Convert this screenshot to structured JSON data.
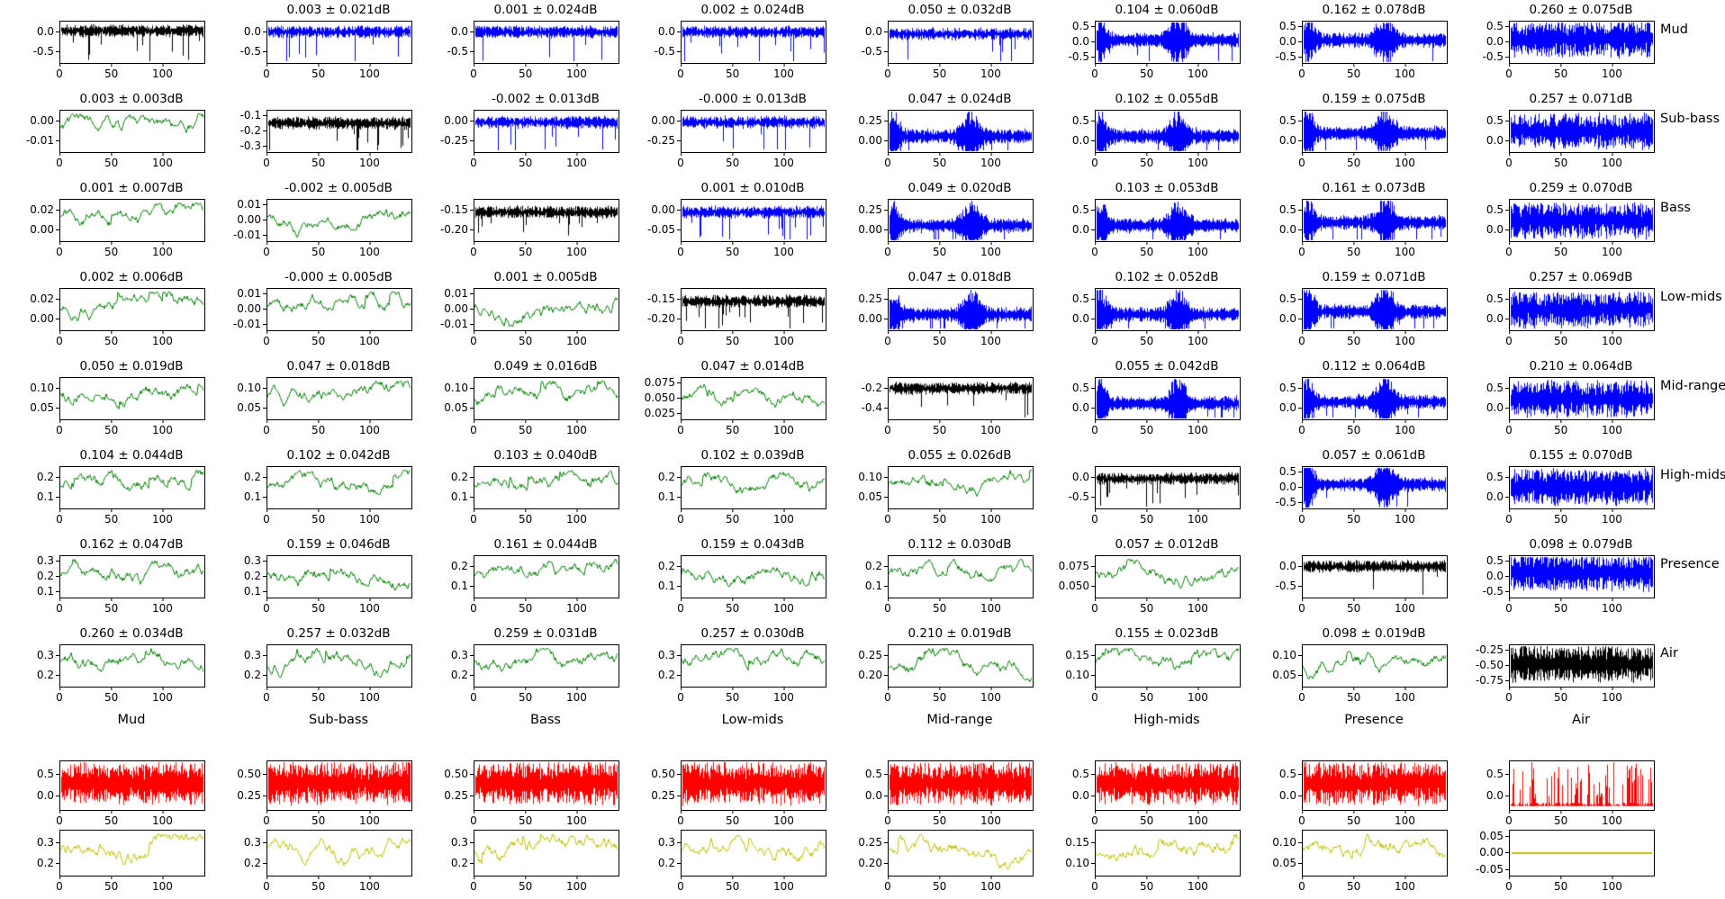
{
  "chart_data": {
    "type": "line",
    "description": "Grid of small time-series subplots: 8x8 matrix of frequency-band gain traces (mean ± std in dB titles), diagonal in black, upper triangle blue, lower triangle green, plus one red noise row and one yellow line row at bottom",
    "x_ticks": [
      "0",
      "50",
      "100"
    ],
    "x_range": [
      0,
      140
    ],
    "row_labels": [
      "Mud",
      "Sub-bass",
      "Bass",
      "Low-mids",
      "Mid-range",
      "High-mids",
      "Presence",
      "Air"
    ],
    "column_labels": [
      "Mud",
      "Sub-bass",
      "Bass",
      "Low-mids",
      "Mid-range",
      "High-mids",
      "Presence",
      "Air"
    ],
    "colors": {
      "k": "#000000",
      "b": "#0000ff",
      "g": "#008000",
      "r": "#ff0000",
      "y": "#bfbf00"
    },
    "matrix": [
      [
        {
          "t": null,
          "c": "k",
          "yt": [
            "0.0",
            "-0.5"
          ],
          "w": "spiky",
          "b": 0.22
        },
        {
          "t": "0.003 ± 0.021dB",
          "c": "b",
          "yt": [
            "0.0",
            "-0.5"
          ],
          "w": "spiky",
          "b": 0.25
        },
        {
          "t": "0.001 ± 0.024dB",
          "c": "b",
          "yt": [
            "0.0",
            "-0.5"
          ],
          "w": "spiky",
          "b": 0.25
        },
        {
          "t": "0.002 ± 0.024dB",
          "c": "b",
          "yt": [
            "0.0",
            "-0.5"
          ],
          "w": "spiky",
          "b": 0.25
        },
        {
          "t": "0.050 ± 0.032dB",
          "c": "b",
          "yt": [
            "0.0",
            "-0.5"
          ],
          "w": "spiky",
          "b": 0.3
        },
        {
          "t": "0.104 ± 0.060dB",
          "c": "b",
          "yt": [
            "0.5",
            "0.0",
            "-0.5"
          ],
          "w": "burst",
          "b": 0.45
        },
        {
          "t": "0.162 ± 0.078dB",
          "c": "b",
          "yt": [
            "0.5",
            "0.0",
            "-0.5"
          ],
          "w": "burst",
          "b": 0.45
        },
        {
          "t": "0.260 ± 0.075dB",
          "c": "b",
          "yt": [
            "0.5",
            "0.0",
            "-0.5"
          ],
          "w": "dense",
          "b": 0.42
        }
      ],
      [
        {
          "t": "0.003 ± 0.003dB",
          "c": "g",
          "yt": [
            "0.00",
            "-0.01"
          ],
          "w": "line"
        },
        {
          "t": null,
          "c": "k",
          "yt": [
            "-0.1",
            "-0.2",
            "-0.3"
          ],
          "w": "spiky",
          "b": 0.3
        },
        {
          "t": "-0.002 ± 0.013dB",
          "c": "b",
          "yt": [
            "0.00",
            "-0.25"
          ],
          "w": "spiky",
          "b": 0.28
        },
        {
          "t": "-0.000 ± 0.013dB",
          "c": "b",
          "yt": [
            "0.00",
            "-0.25"
          ],
          "w": "spiky",
          "b": 0.28
        },
        {
          "t": "0.047 ± 0.024dB",
          "c": "b",
          "yt": [
            "0.25",
            "0.00"
          ],
          "w": "burst",
          "b": 0.62
        },
        {
          "t": "0.102 ± 0.055dB",
          "c": "b",
          "yt": [
            "0.5",
            "0.0"
          ],
          "w": "burst",
          "b": 0.62
        },
        {
          "t": "0.159 ± 0.075dB",
          "c": "b",
          "yt": [
            "0.5",
            "0.0"
          ],
          "w": "burst",
          "b": 0.55
        },
        {
          "t": "0.257 ± 0.071dB",
          "c": "b",
          "yt": [
            "0.5",
            "0.0"
          ],
          "w": "dense",
          "b": 0.5
        }
      ],
      [
        {
          "t": "0.001 ± 0.007dB",
          "c": "g",
          "yt": [
            "0.02",
            "0.00"
          ],
          "w": "line"
        },
        {
          "t": "-0.002 ± 0.005dB",
          "c": "g",
          "yt": [
            "0.01",
            "0.00",
            "-0.01"
          ],
          "w": "line"
        },
        {
          "t": null,
          "c": "k",
          "yt": [
            "-0.15",
            "-0.20"
          ],
          "w": "spiky",
          "b": 0.3
        },
        {
          "t": "0.001 ± 0.010dB",
          "c": "b",
          "yt": [
            "0.00",
            "-0.05"
          ],
          "w": "spiky",
          "b": 0.3
        },
        {
          "t": "0.049 ± 0.020dB",
          "c": "b",
          "yt": [
            "0.25",
            "0.00"
          ],
          "w": "burst",
          "b": 0.62
        },
        {
          "t": "0.103 ± 0.053dB",
          "c": "b",
          "yt": [
            "0.5",
            "0.0"
          ],
          "w": "burst",
          "b": 0.62
        },
        {
          "t": "0.161 ± 0.073dB",
          "c": "b",
          "yt": [
            "0.5",
            "0.0"
          ],
          "w": "burst",
          "b": 0.55
        },
        {
          "t": "0.259 ± 0.070dB",
          "c": "b",
          "yt": [
            "0.5",
            "0.0"
          ],
          "w": "dense",
          "b": 0.5
        }
      ],
      [
        {
          "t": "0.002 ± 0.006dB",
          "c": "g",
          "yt": [
            "0.02",
            "0.00"
          ],
          "w": "line"
        },
        {
          "t": "-0.000 ± 0.005dB",
          "c": "g",
          "yt": [
            "0.01",
            "0.00",
            "-0.01"
          ],
          "w": "line"
        },
        {
          "t": "0.001 ± 0.005dB",
          "c": "g",
          "yt": [
            "0.01",
            "0.00",
            "-0.01"
          ],
          "w": "line"
        },
        {
          "t": null,
          "c": "k",
          "yt": [
            "-0.15",
            "-0.20"
          ],
          "w": "spiky",
          "b": 0.3
        },
        {
          "t": "0.047 ± 0.018dB",
          "c": "b",
          "yt": [
            "0.25",
            "0.00"
          ],
          "w": "burst",
          "b": 0.62
        },
        {
          "t": "0.102 ± 0.052dB",
          "c": "b",
          "yt": [
            "0.5",
            "0.0"
          ],
          "w": "burst",
          "b": 0.62
        },
        {
          "t": "0.159 ± 0.071dB",
          "c": "b",
          "yt": [
            "0.5",
            "0.0"
          ],
          "w": "burst",
          "b": 0.55
        },
        {
          "t": "0.257 ± 0.069dB",
          "c": "b",
          "yt": [
            "0.5",
            "0.0"
          ],
          "w": "dense",
          "b": 0.5
        }
      ],
      [
        {
          "t": "0.050 ± 0.019dB",
          "c": "g",
          "yt": [
            "0.10",
            "0.05"
          ],
          "w": "line"
        },
        {
          "t": "0.047 ± 0.018dB",
          "c": "g",
          "yt": [
            "0.10",
            "0.05"
          ],
          "w": "line"
        },
        {
          "t": "0.049 ± 0.016dB",
          "c": "g",
          "yt": [
            "0.10",
            "0.05"
          ],
          "w": "line"
        },
        {
          "t": "0.047 ± 0.014dB",
          "c": "g",
          "yt": [
            "0.075",
            "0.050",
            "0.025"
          ],
          "w": "line"
        },
        {
          "t": null,
          "c": "k",
          "yt": [
            "-0.2",
            "-0.4"
          ],
          "w": "spiky",
          "b": 0.25
        },
        {
          "t": "0.055 ± 0.042dB",
          "c": "b",
          "yt": [
            "0.5",
            "0.0"
          ],
          "w": "burst",
          "b": 0.62
        },
        {
          "t": "0.112 ± 0.064dB",
          "c": "b",
          "yt": [
            "0.5",
            "0.0"
          ],
          "w": "burst",
          "b": 0.58
        },
        {
          "t": "0.210 ± 0.064dB",
          "c": "b",
          "yt": [
            "0.5",
            "0.0"
          ],
          "w": "dense",
          "b": 0.5
        }
      ],
      [
        {
          "t": "0.104 ± 0.044dB",
          "c": "g",
          "yt": [
            "0.2",
            "0.1"
          ],
          "w": "line"
        },
        {
          "t": "0.102 ± 0.042dB",
          "c": "g",
          "yt": [
            "0.2",
            "0.1"
          ],
          "w": "line"
        },
        {
          "t": "0.103 ± 0.040dB",
          "c": "g",
          "yt": [
            "0.2",
            "0.1"
          ],
          "w": "line"
        },
        {
          "t": "0.102 ± 0.039dB",
          "c": "g",
          "yt": [
            "0.2",
            "0.1"
          ],
          "w": "line"
        },
        {
          "t": "0.055 ± 0.026dB",
          "c": "g",
          "yt": [
            "0.10",
            "0.05"
          ],
          "w": "line"
        },
        {
          "t": null,
          "c": "k",
          "yt": [
            "0.0",
            "-0.5"
          ],
          "w": "spiky",
          "b": 0.28
        },
        {
          "t": "0.057 ± 0.061dB",
          "c": "b",
          "yt": [
            "0.5",
            "0.0",
            "-0.5"
          ],
          "w": "burst",
          "b": 0.42
        },
        {
          "t": "0.155 ± 0.070dB",
          "c": "b",
          "yt": [
            "0.5",
            "0.0"
          ],
          "w": "dense",
          "b": 0.48
        }
      ],
      [
        {
          "t": "0.162 ± 0.047dB",
          "c": "g",
          "yt": [
            "0.3",
            "0.2",
            "0.1"
          ],
          "w": "line"
        },
        {
          "t": "0.159 ± 0.046dB",
          "c": "g",
          "yt": [
            "0.3",
            "0.2",
            "0.1"
          ],
          "w": "line"
        },
        {
          "t": "0.161 ± 0.044dB",
          "c": "g",
          "yt": [
            "0.2",
            "0.1"
          ],
          "w": "line"
        },
        {
          "t": "0.159 ± 0.043dB",
          "c": "g",
          "yt": [
            "0.2",
            "0.1"
          ],
          "w": "line"
        },
        {
          "t": "0.112 ± 0.030dB",
          "c": "g",
          "yt": [
            "0.2",
            "0.1"
          ],
          "w": "line"
        },
        {
          "t": "0.057 ± 0.012dB",
          "c": "g",
          "yt": [
            "0.075",
            "0.050"
          ],
          "w": "line"
        },
        {
          "t": null,
          "c": "k",
          "yt": [
            "0.0",
            "-0.5"
          ],
          "w": "spiky",
          "b": 0.25
        },
        {
          "t": "0.098 ± 0.079dB",
          "c": "b",
          "yt": [
            "0.5",
            "0.0",
            "-0.5"
          ],
          "w": "dense",
          "b": 0.4
        }
      ],
      [
        {
          "t": "0.260 ± 0.034dB",
          "c": "g",
          "yt": [
            "0.3",
            "0.2"
          ],
          "w": "line"
        },
        {
          "t": "0.257 ± 0.032dB",
          "c": "g",
          "yt": [
            "0.3",
            "0.2"
          ],
          "w": "line"
        },
        {
          "t": "0.259 ± 0.031dB",
          "c": "g",
          "yt": [
            "0.3",
            "0.2"
          ],
          "w": "line"
        },
        {
          "t": "0.257 ± 0.030dB",
          "c": "g",
          "yt": [
            "0.3",
            "0.2"
          ],
          "w": "line"
        },
        {
          "t": "0.210 ± 0.019dB",
          "c": "g",
          "yt": [
            "0.25",
            "0.20"
          ],
          "w": "line"
        },
        {
          "t": "0.155 ± 0.023dB",
          "c": "g",
          "yt": [
            "0.15",
            "0.10"
          ],
          "w": "line"
        },
        {
          "t": "0.098 ± 0.019dB",
          "c": "g",
          "yt": [
            "0.10",
            "0.05"
          ],
          "w": "line"
        },
        {
          "t": null,
          "c": "k",
          "yt": [
            "-0.25",
            "-0.50",
            "-0.75"
          ],
          "w": "dense",
          "b": 0.45
        }
      ]
    ],
    "extra_rows": [
      {
        "name": "red-noise-row",
        "cells": [
          {
            "t": null,
            "c": "r",
            "yt": [
              "0.5",
              "0.0"
            ],
            "w": "dense",
            "b": 0.45
          },
          {
            "t": null,
            "c": "r",
            "yt": [
              "0.50",
              "0.25"
            ],
            "w": "dense",
            "b": 0.45
          },
          {
            "t": null,
            "c": "r",
            "yt": [
              "0.50",
              "0.25"
            ],
            "w": "dense",
            "b": 0.45
          },
          {
            "t": null,
            "c": "r",
            "yt": [
              "0.50",
              "0.25"
            ],
            "w": "dense",
            "b": 0.45
          },
          {
            "t": null,
            "c": "r",
            "yt": [
              "0.5",
              "0.0"
            ],
            "w": "dense",
            "b": 0.45
          },
          {
            "t": null,
            "c": "r",
            "yt": [
              "0.5",
              "0.0"
            ],
            "w": "dense",
            "b": 0.45
          },
          {
            "t": null,
            "c": "r",
            "yt": [
              "0.5",
              "0.0"
            ],
            "w": "dense",
            "b": 0.45
          },
          {
            "t": null,
            "c": "r",
            "yt": [
              "0.5",
              "0.0"
            ],
            "w": "spikyup",
            "b": 0.85
          }
        ]
      },
      {
        "name": "yellow-line-row",
        "cells": [
          {
            "t": null,
            "c": "y",
            "yt": [
              "0.3",
              "0.2"
            ],
            "w": "line"
          },
          {
            "t": null,
            "c": "y",
            "yt": [
              "0.3",
              "0.2"
            ],
            "w": "line"
          },
          {
            "t": null,
            "c": "y",
            "yt": [
              "0.3",
              "0.2"
            ],
            "w": "line"
          },
          {
            "t": null,
            "c": "y",
            "yt": [
              "0.3",
              "0.2"
            ],
            "w": "line"
          },
          {
            "t": null,
            "c": "y",
            "yt": [
              "0.25",
              "0.20"
            ],
            "w": "line"
          },
          {
            "t": null,
            "c": "y",
            "yt": [
              "0.15",
              "0.10"
            ],
            "w": "line"
          },
          {
            "t": null,
            "c": "y",
            "yt": [
              "0.10",
              "0.05"
            ],
            "w": "line"
          },
          {
            "t": null,
            "c": "y",
            "yt": [
              "0.05",
              "0.00",
              "-0.05"
            ],
            "w": "flat",
            "b": 0.5
          }
        ]
      }
    ]
  }
}
